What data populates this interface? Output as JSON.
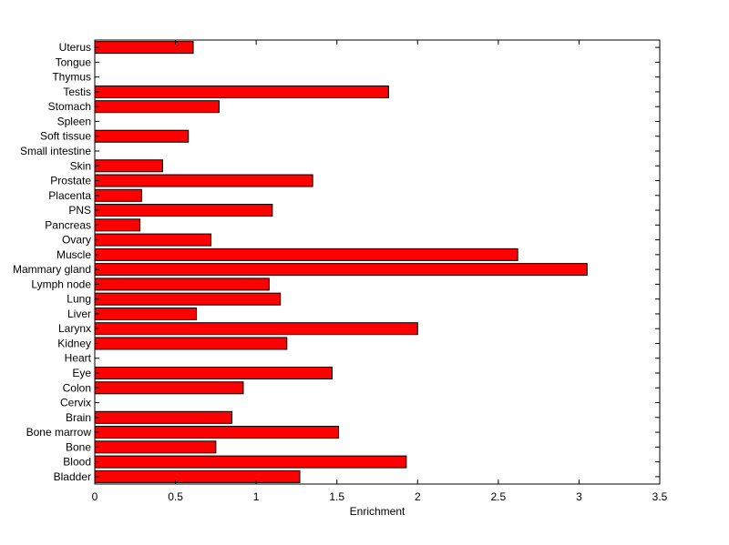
{
  "chart_data": {
    "type": "bar",
    "orientation": "horizontal",
    "title": "",
    "xlabel": "Enrichment",
    "ylabel": "",
    "xlim": [
      0,
      3.5
    ],
    "xticks": [
      "0",
      "0.5",
      "1",
      "1.5",
      "2",
      "2.5",
      "3",
      "3.5"
    ],
    "grid": false,
    "bar_color": "#ff0000",
    "categories": [
      "Bladder",
      "Blood",
      "Bone",
      "Bone marrow",
      "Brain",
      "Cervix",
      "Colon",
      "Eye",
      "Heart",
      "Kidney",
      "Larynx",
      "Liver",
      "Lung",
      "Lymph node",
      "Mammary gland",
      "Muscle",
      "Ovary",
      "Pancreas",
      "PNS",
      "Placenta",
      "Prostate",
      "Skin",
      "Small intestine",
      "Soft tissue",
      "Spleen",
      "Stomach",
      "Testis",
      "Thymus",
      "Tongue",
      "Uterus"
    ],
    "values": [
      1.27,
      1.93,
      0.75,
      1.51,
      0.85,
      0,
      0.92,
      1.47,
      0,
      1.19,
      2.0,
      0.63,
      1.15,
      1.08,
      3.05,
      2.62,
      0.72,
      0.28,
      1.1,
      0.29,
      1.35,
      0.42,
      0,
      0.58,
      0,
      0.77,
      1.82,
      0,
      0,
      0.61
    ]
  }
}
